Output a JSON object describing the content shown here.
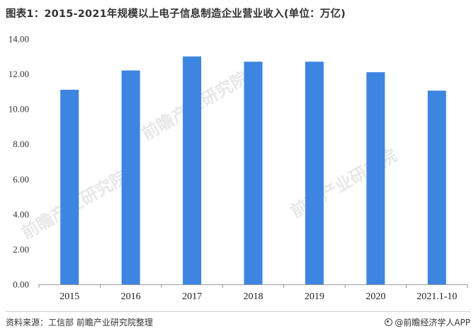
{
  "title": "图表1：2015-2021年规模以上电子信息制造企业营业收入(单位：万亿)",
  "chart_data": {
    "type": "bar",
    "categories": [
      "2015",
      "2016",
      "2017",
      "2018",
      "2019",
      "2020",
      "2021.1-10"
    ],
    "values": [
      11.1,
      12.2,
      13.0,
      12.7,
      12.7,
      12.1,
      11.05
    ],
    "ylim": [
      0,
      14
    ],
    "yticks": [
      "0.00",
      "2.00",
      "4.00",
      "6.00",
      "8.00",
      "10.00",
      "12.00",
      "14.00"
    ],
    "bar_color": "#3d85e0",
    "grid": false,
    "legend": "none"
  },
  "footer": {
    "source": "资料来源：工信部 前瞻产业研究院整理",
    "brand": "@前瞻经济学人APP",
    "brand_icon": "qianzhan-logo-icon"
  },
  "watermark": "前瞻产业研究院"
}
